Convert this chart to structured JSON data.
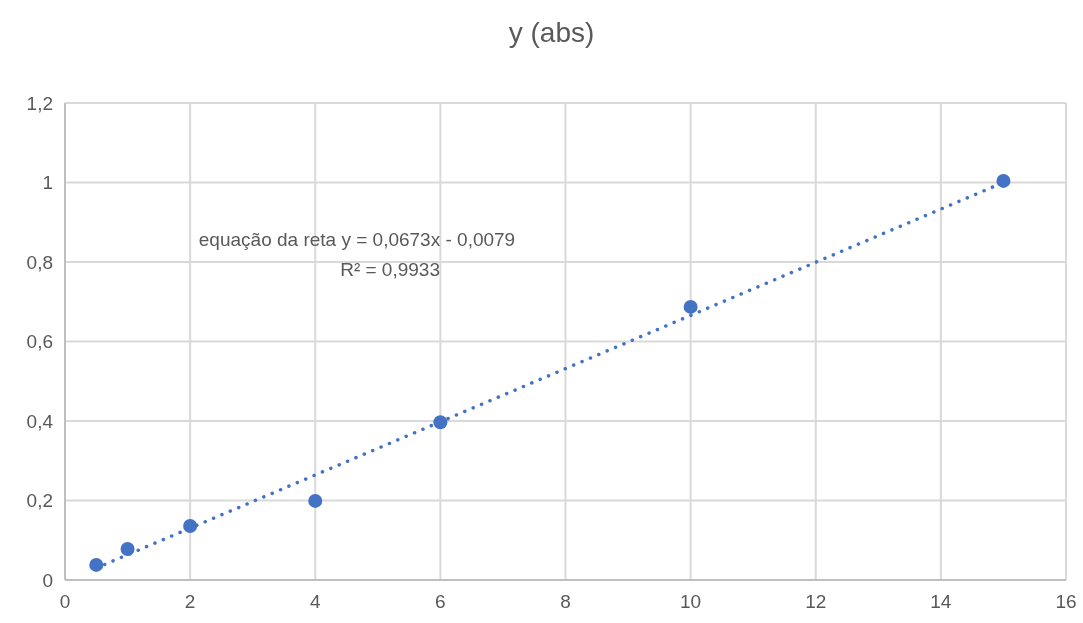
{
  "chart_data": {
    "type": "scatter",
    "title": "y (abs)",
    "series": [
      {
        "color": "#4472c4",
        "x": [
          0.5,
          1,
          2,
          4,
          6,
          10,
          15
        ],
        "values": [
          0.038,
          0.078,
          0.136,
          0.199,
          0.397,
          0.687,
          1.004
        ]
      },
      {
        "type": "line",
        "color": "#4472c4",
        "line_style": "dotted",
        "marker": "none",
        "x": [
          0.5,
          15
        ],
        "values": [
          0.03,
          1.0
        ]
      }
    ],
    "annotations": [
      "equação da reta y = 0,0673x - 0,0079",
      "R² = 0,9933"
    ],
    "xlim": [
      0,
      16
    ],
    "xticks": [
      0,
      2,
      4,
      6,
      8,
      10,
      12,
      14,
      16
    ],
    "ylim": [
      0,
      1.2
    ],
    "yticks": [
      0,
      {
        "value": 0.2,
        "label": "0,2"
      },
      {
        "value": 0.4,
        "label": "0,4"
      },
      {
        "value": 0.6,
        "label": "0,6"
      },
      {
        "value": 0.8,
        "label": "0,8"
      },
      1,
      {
        "value": 1.2,
        "label": "1,2"
      }
    ],
    "grid": true,
    "marker": "circle"
  }
}
